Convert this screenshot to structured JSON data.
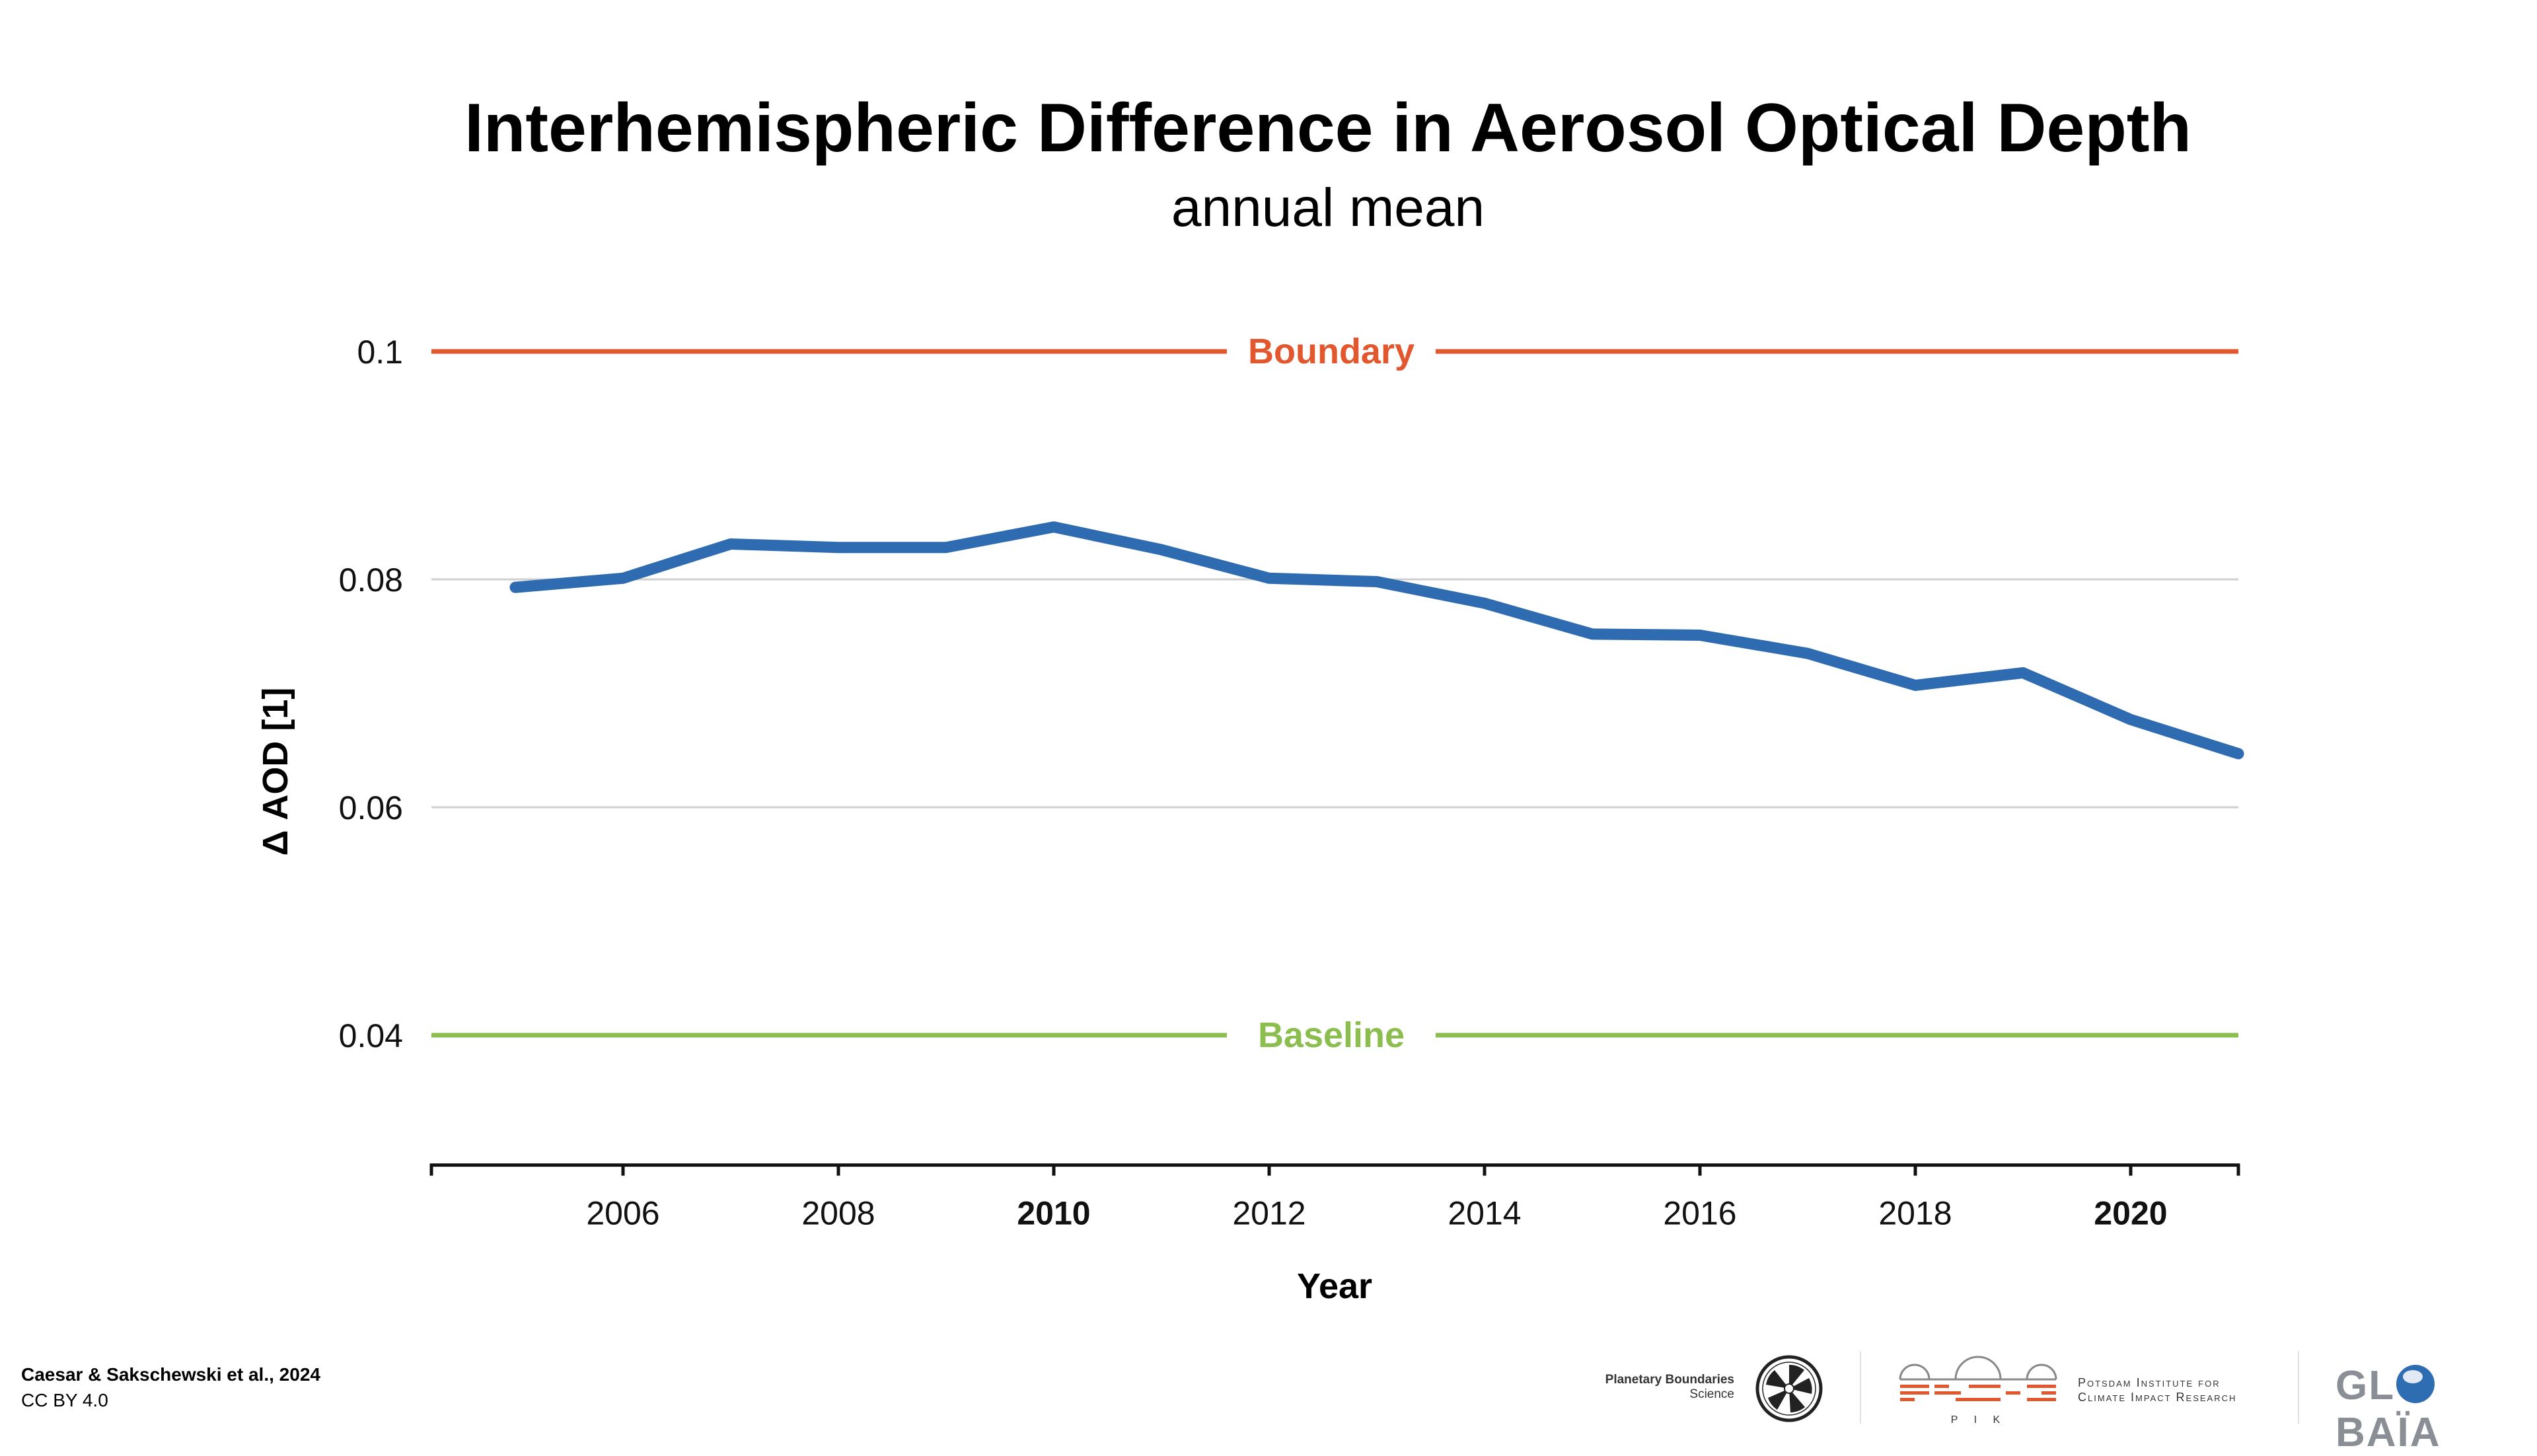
{
  "header": {
    "title": "Interhemispheric Difference in Aerosol Optical Depth",
    "subtitle": "annual mean"
  },
  "chart_data": {
    "type": "line",
    "title": "Interhemispheric Difference in Aerosol Optical Depth",
    "subtitle": "annual mean",
    "xlabel": "Year",
    "ylabel": "Δ AOD [1]",
    "xlim": [
      2004.2,
      2021.0
    ],
    "ylim": [
      0.0286,
      0.1
    ],
    "x_ticks": [
      2006,
      2008,
      2010,
      2012,
      2014,
      2016,
      2018,
      2020
    ],
    "x_ticks_bold": [
      2010,
      2020
    ],
    "y_ticks": [
      0.04,
      0.06,
      0.08,
      0.1
    ],
    "y_tick_labels": [
      "0.04",
      "0.06",
      "0.08",
      "0.1"
    ],
    "grid": "horizontal",
    "series": [
      {
        "color": "#2e6bb0",
        "x": [
          2005,
          2006,
          2007,
          2008,
          2009,
          2010,
          2011,
          2012,
          2013,
          2014,
          2015,
          2016,
          2017,
          2018,
          2019,
          2020,
          2021
        ],
        "y": [
          0.0793,
          0.0801,
          0.0831,
          0.0828,
          0.0828,
          0.0846,
          0.0826,
          0.0801,
          0.0798,
          0.0779,
          0.0752,
          0.0751,
          0.0735,
          0.0707,
          0.0718,
          0.0677,
          0.0647
        ]
      }
    ],
    "reference_lines": [
      {
        "label": "Boundary",
        "value": 0.1,
        "color": "#e2572d"
      },
      {
        "label": "Baseline",
        "value": 0.04,
        "color": "#8bbe4f"
      }
    ]
  },
  "footer": {
    "credit": "Caesar & Sakschewski et al., 2024",
    "license": "CC BY 4.0",
    "logos": {
      "planetary_boundaries_line1": "Planetary Boundaries",
      "planetary_boundaries_line2": "Science",
      "pik_mark": "P I K",
      "pik_text": "Potsdam Institute for\nClimate Impact Research",
      "globaia_before": "GL",
      "globaia_after": "BAÏA"
    }
  }
}
